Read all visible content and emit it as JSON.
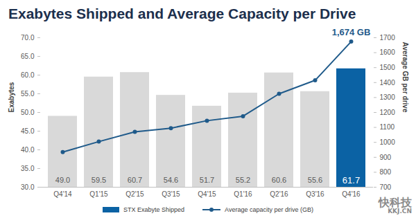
{
  "chart_data": {
    "type": "bar",
    "title": "Exabytes Shipped and Average Capacity per Drive",
    "watermark": [
      "快科技",
      "KKJ.CN"
    ],
    "categories": [
      "Q4'14",
      "Q1'15",
      "Q2'15",
      "Q3'15",
      "Q4'15",
      "Q1'16",
      "Q2'16",
      "Q3'16",
      "Q4'16"
    ],
    "y_label": "Exabytes",
    "y2_label": "Average GB per drive",
    "ylim": [
      30,
      70
    ],
    "yticks": [
      {
        "value": 30,
        "label": "30.0"
      },
      {
        "value": 35,
        "label": "35.0"
      },
      {
        "value": 40,
        "label": "40.0"
      },
      {
        "value": 45,
        "label": "45.0"
      },
      {
        "value": 50,
        "label": "50.0"
      },
      {
        "value": 55,
        "label": "55.0"
      },
      {
        "value": 60,
        "label": "60.0"
      },
      {
        "value": 65,
        "label": "65.0"
      },
      {
        "value": 70,
        "label": "70.0"
      }
    ],
    "y2lim": [
      700,
      1700
    ],
    "y2ticks": [
      700,
      800,
      900,
      1000,
      1100,
      1200,
      1300,
      1400,
      1500,
      1600,
      1700
    ],
    "data_labels": true,
    "annotation": "1,674 GB",
    "series": [
      {
        "name": "STX Exabyte Shipped",
        "type": "bar",
        "color": "#0b62a4",
        "colors": [
          "#d9d9d9",
          "#d9d9d9",
          "#d9d9d9",
          "#d9d9d9",
          "#d9d9d9",
          "#d9d9d9",
          "#d9d9d9",
          "#d9d9d9",
          "#0b62a4"
        ],
        "values": [
          49.0,
          59.5,
          60.7,
          54.6,
          51.7,
          55.2,
          60.6,
          55.6,
          61.7
        ],
        "value_labels": [
          "49.0",
          "59.5",
          "60.7",
          "54.6",
          "51.7",
          "55.2",
          "60.6",
          "55.6",
          "61.7"
        ]
      },
      {
        "name": "Average capacity per drive (GB)",
        "type": "line",
        "axis": "y2",
        "color": "#1f5a8a",
        "marker": "circle",
        "values": [
          935,
          1005,
          1070,
          1095,
          1145,
          1175,
          1325,
          1415,
          1674
        ]
      }
    ]
  }
}
